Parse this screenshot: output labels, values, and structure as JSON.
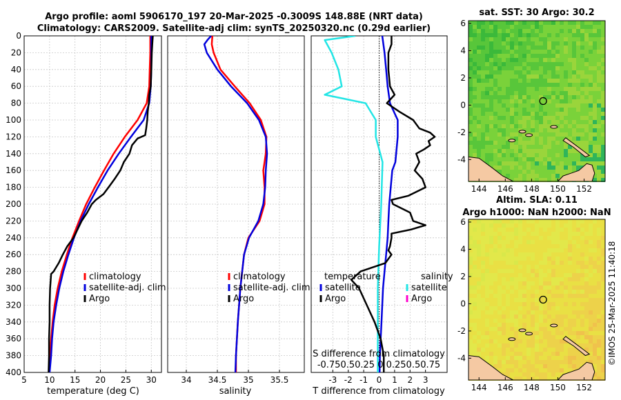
{
  "header": {
    "line1": "Argo profile: aoml 5906170_197 20-Mar-2025 -0.3009S 148.88E (NRT data)",
    "line2": "Climatology: CARS2009. Satellite-adj clim: synTS_20250320.nc (0.29d earlier)"
  },
  "depth_ticks": [
    "0",
    "20",
    "40",
    "60",
    "80",
    "100",
    "120",
    "140",
    "160",
    "180",
    "200",
    "220",
    "240",
    "260",
    "280",
    "300",
    "320",
    "340",
    "360",
    "380",
    "400"
  ],
  "chart_data": [
    {
      "id": "temperature",
      "type": "line",
      "xlabel": "temperature (deg C)",
      "ylabel": "",
      "xlim": [
        5,
        32
      ],
      "ylim": [
        400,
        0
      ],
      "xticks": [
        "5",
        "10",
        "15",
        "20",
        "25",
        "30"
      ],
      "xtick_values": [
        5,
        10,
        15,
        20,
        25,
        30
      ],
      "legend_position": "lower-right",
      "series": [
        {
          "name": "climatology",
          "color": "#ff0000",
          "depth": [
            0,
            20,
            40,
            60,
            80,
            100,
            120,
            140,
            160,
            180,
            200,
            220,
            240,
            260,
            280,
            300,
            320,
            340,
            360,
            380,
            400
          ],
          "values": [
            29.8,
            29.8,
            29.7,
            29.6,
            29.1,
            27.3,
            24.8,
            22.6,
            20.7,
            18.9,
            17.2,
            15.8,
            14.5,
            13.4,
            12.4,
            11.6,
            11.0,
            10.6,
            10.3,
            10.1,
            9.9
          ]
        },
        {
          "name": "satellite-adj. clim",
          "color": "#0000dd",
          "depth": [
            0,
            20,
            40,
            60,
            80,
            100,
            120,
            140,
            160,
            180,
            200,
            220,
            240,
            260,
            280,
            300,
            320,
            340,
            360,
            380,
            400
          ],
          "values": [
            30.0,
            30.0,
            30.0,
            29.9,
            29.6,
            28.5,
            26.0,
            23.6,
            21.4,
            19.5,
            17.7,
            16.1,
            14.8,
            13.7,
            12.7,
            11.9,
            11.3,
            10.8,
            10.5,
            10.3,
            10.0
          ]
        },
        {
          "name": "Argo",
          "color": "#000000",
          "depth": [
            0,
            10,
            20,
            40,
            60,
            70,
            80,
            90,
            100,
            110,
            118,
            122,
            130,
            140,
            150,
            160,
            170,
            180,
            188,
            195,
            200,
            210,
            220,
            240,
            250,
            260,
            270,
            280,
            283,
            300,
            320,
            340,
            360,
            380,
            400
          ],
          "values": [
            30.3,
            30.2,
            30.1,
            30.0,
            29.9,
            29.6,
            29.5,
            29.3,
            29.2,
            29.0,
            28.8,
            27.3,
            26.2,
            25.7,
            24.6,
            23.9,
            22.8,
            21.6,
            20.6,
            19.1,
            18.3,
            17.4,
            16.3,
            14.7,
            13.5,
            12.6,
            11.8,
            10.8,
            10.3,
            10.1,
            10.0,
            10.0,
            9.9,
            9.9,
            9.8
          ]
        }
      ]
    },
    {
      "id": "salinity",
      "type": "line",
      "xlabel": "salinity",
      "ylabel": "",
      "xlim": [
        33.7,
        35.9
      ],
      "ylim": [
        400,
        0
      ],
      "xticks": [
        "34",
        "34.5",
        "35",
        "35.5"
      ],
      "xtick_values": [
        34,
        34.5,
        35,
        35.5
      ],
      "legend_position": "lower-right",
      "series": [
        {
          "name": "climatology",
          "color": "#ff0000",
          "depth": [
            0,
            10,
            20,
            40,
            60,
            80,
            100,
            120,
            140,
            160,
            180,
            200,
            220,
            240,
            260,
            280,
            300,
            340,
            380,
            400
          ],
          "values": [
            34.42,
            34.41,
            34.44,
            34.55,
            34.78,
            35.02,
            35.2,
            35.29,
            35.28,
            35.24,
            35.26,
            35.26,
            35.18,
            35.0,
            34.93,
            34.9,
            34.87,
            34.83,
            34.8,
            34.8
          ]
        },
        {
          "name": "satellite-adj. clim",
          "color": "#0000dd",
          "depth": [
            0,
            5,
            10,
            20,
            40,
            60,
            80,
            100,
            120,
            140,
            160,
            180,
            200,
            220,
            240,
            260,
            280,
            300,
            340,
            380,
            400
          ],
          "values": [
            34.4,
            34.34,
            34.29,
            34.33,
            34.5,
            34.72,
            34.98,
            35.17,
            35.28,
            35.3,
            35.28,
            35.27,
            35.24,
            35.16,
            35.01,
            34.93,
            34.9,
            34.87,
            34.83,
            34.8,
            34.79
          ]
        }
      ]
    },
    {
      "id": "difference",
      "type": "line",
      "xlabel": "T difference from climatology",
      "ylabel": "",
      "xlim": [
        -4.4,
        4.4
      ],
      "ylim": [
        400,
        0
      ],
      "xticks": [
        "-3",
        "-2",
        "-1",
        "0",
        "1",
        "2",
        "3"
      ],
      "xtick_values": [
        -3,
        -2,
        -1,
        0,
        1,
        2,
        3
      ],
      "s_axis_label": "S difference from climatology",
      "s_ticks": "-0.750.50.25 0  0.250.50.75",
      "legend_position": "lower",
      "series": [
        {
          "name": "salinity satellite",
          "color": "#22e5e5",
          "depth": [
            0,
            5,
            20,
            40,
            60,
            70,
            80,
            100,
            120,
            150,
            200,
            250,
            300,
            350,
            400
          ],
          "values": [
            -0.35,
            -0.8,
            -0.7,
            -0.6,
            -0.55,
            -0.8,
            -0.2,
            -0.05,
            -0.05,
            0.05,
            0.03,
            0.0,
            -0.02,
            -0.02,
            -0.02
          ]
        },
        {
          "name": "temperature satellite",
          "color": "#0000dd",
          "depth": [
            0,
            20,
            40,
            60,
            80,
            100,
            120,
            150,
            160,
            180,
            200,
            220,
            240,
            260,
            280,
            300,
            320,
            340,
            360,
            380,
            400
          ],
          "values": [
            0.2,
            0.35,
            0.45,
            0.55,
            0.7,
            1.2,
            1.2,
            1.05,
            0.85,
            0.75,
            0.65,
            0.6,
            0.55,
            0.45,
            0.35,
            0.25,
            0.2,
            0.15,
            0.1,
            0.05,
            0.03
          ]
        },
        {
          "name": "Argo",
          "color": "#000000",
          "depth": [
            0,
            10,
            20,
            40,
            60,
            70,
            80,
            90,
            100,
            110,
            115,
            120,
            125,
            130,
            135,
            140,
            150,
            160,
            170,
            180,
            190,
            195,
            200,
            210,
            220,
            225,
            230,
            235,
            240,
            250,
            255,
            260,
            270,
            280,
            290,
            300,
            320,
            340,
            360,
            380,
            400
          ],
          "values": [
            0.8,
            0.8,
            0.6,
            0.6,
            0.7,
            1.0,
            0.5,
            1.3,
            2.2,
            2.6,
            3.3,
            3.6,
            3.2,
            3.3,
            2.9,
            2.4,
            2.6,
            2.3,
            2.8,
            3.0,
            1.9,
            0.8,
            0.9,
            2.0,
            2.2,
            3.0,
            2.1,
            0.8,
            0.8,
            0.7,
            0.6,
            0.8,
            0.4,
            -1.2,
            -1.8,
            -1.3,
            -0.8,
            -0.3,
            0.1,
            0.3,
            0.3
          ]
        },
        {
          "name": "salinity Argo",
          "color": "#ff00cc",
          "depth": [],
          "values": []
        }
      ]
    }
  ],
  "legends": {
    "climatology": "climatology",
    "satellite_adj": "satellite-adj. clim",
    "argo": "Argo",
    "temperature_header": "temperature",
    "salinity_header": "salinity",
    "satellite": "satellite"
  },
  "maps": [
    {
      "id": "sst-map",
      "title": "sat. SST: 30 Argo: 30.2",
      "xticks": [
        "144",
        "146",
        "148",
        "150",
        "152"
      ],
      "xtick_values": [
        144,
        146,
        148,
        150,
        152
      ],
      "yticks": [
        "6",
        "4",
        "2",
        "0",
        "-2",
        "-4"
      ],
      "ytick_values": [
        6,
        4,
        2,
        0,
        -2,
        -4
      ],
      "lon_range": [
        143.2,
        153.6
      ],
      "lat_range": [
        -5.6,
        6.2
      ],
      "argo_position": {
        "lon": 148.88,
        "lat": 0.3
      },
      "palette": [
        "#3bb93a",
        "#58c63a",
        "#7ad23a",
        "#9ad53b",
        "#2fb55a"
      ]
    },
    {
      "id": "sla-map",
      "title_line1": "Altim. SLA: 0.11",
      "title_line2": "Argo h1000: NaN h2000: NaN",
      "xticks": [
        "144",
        "146",
        "148",
        "150",
        "152"
      ],
      "xtick_values": [
        144,
        146,
        148,
        150,
        152
      ],
      "yticks": [
        "6",
        "4",
        "2",
        "0",
        "-2",
        "-4"
      ],
      "ytick_values": [
        6,
        4,
        2,
        0,
        -2,
        -4
      ],
      "lon_range": [
        143.2,
        153.6
      ],
      "lat_range": [
        -5.6,
        6.2
      ],
      "argo_position": {
        "lon": 148.88,
        "lat": 0.3
      },
      "palette": [
        "#d9e84a",
        "#e2e84a",
        "#e9e044",
        "#edd24a",
        "#f0c24c"
      ]
    }
  ],
  "colors": {
    "land": "#f5c9a3",
    "coast": "#000000",
    "grid": "#c8c8c8"
  },
  "watermark": "©IMOS 25-Mar-2025 11:40:18"
}
